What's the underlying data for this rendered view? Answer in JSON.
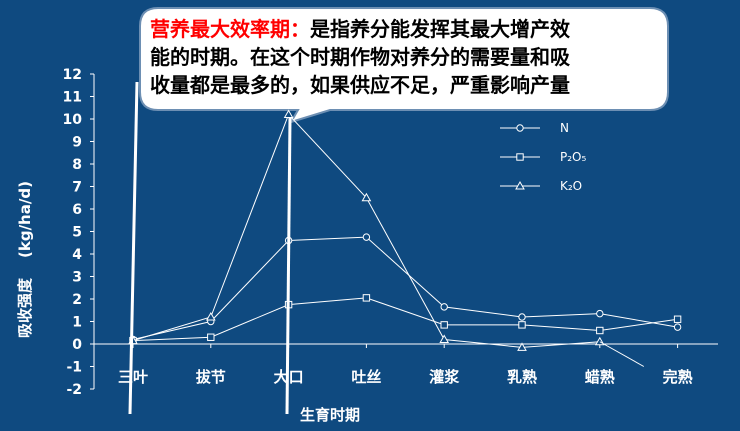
{
  "callout": {
    "title": "营养最大效率期：",
    "lines": [
      "是指养分能发挥其最大增产效",
      "能的时期。在这个时期作物对养分的需要量和吸",
      "收量都是最多的，如果供应不足，严重影响产量"
    ]
  },
  "chart_data": {
    "type": "line",
    "categories": [
      "三叶",
      "拔节",
      "大口",
      "吐丝",
      "灌浆",
      "乳熟",
      "蜡熟",
      "完熟"
    ],
    "xlabel": "生育时期",
    "ylabel_unit": "(kg/ha/d)",
    "ylabel": "吸收强度",
    "ylim": [
      -2,
      12
    ],
    "yticks": [
      -2,
      -1,
      0,
      1,
      2,
      3,
      4,
      5,
      6,
      7,
      8,
      9,
      10,
      11,
      12
    ],
    "grid": false,
    "legend_position": "top-right",
    "series": [
      {
        "name": "N",
        "marker": "circle",
        "values": [
          0.2,
          1.0,
          4.6,
          4.75,
          1.65,
          1.2,
          1.35,
          0.75
        ]
      },
      {
        "name": "P2O5",
        "marker": "square",
        "values": [
          0.15,
          0.3,
          1.75,
          2.05,
          0.85,
          0.85,
          0.6,
          1.1
        ]
      },
      {
        "name": "K2O",
        "marker": "triangle",
        "values": [
          0.15,
          1.2,
          10.2,
          6.5,
          0.2,
          -0.15,
          0.1,
          null
        ]
      }
    ],
    "colors": {
      "background": "#0f4a80",
      "lines": "#ffffff",
      "callout_title": "#ff0000"
    }
  }
}
